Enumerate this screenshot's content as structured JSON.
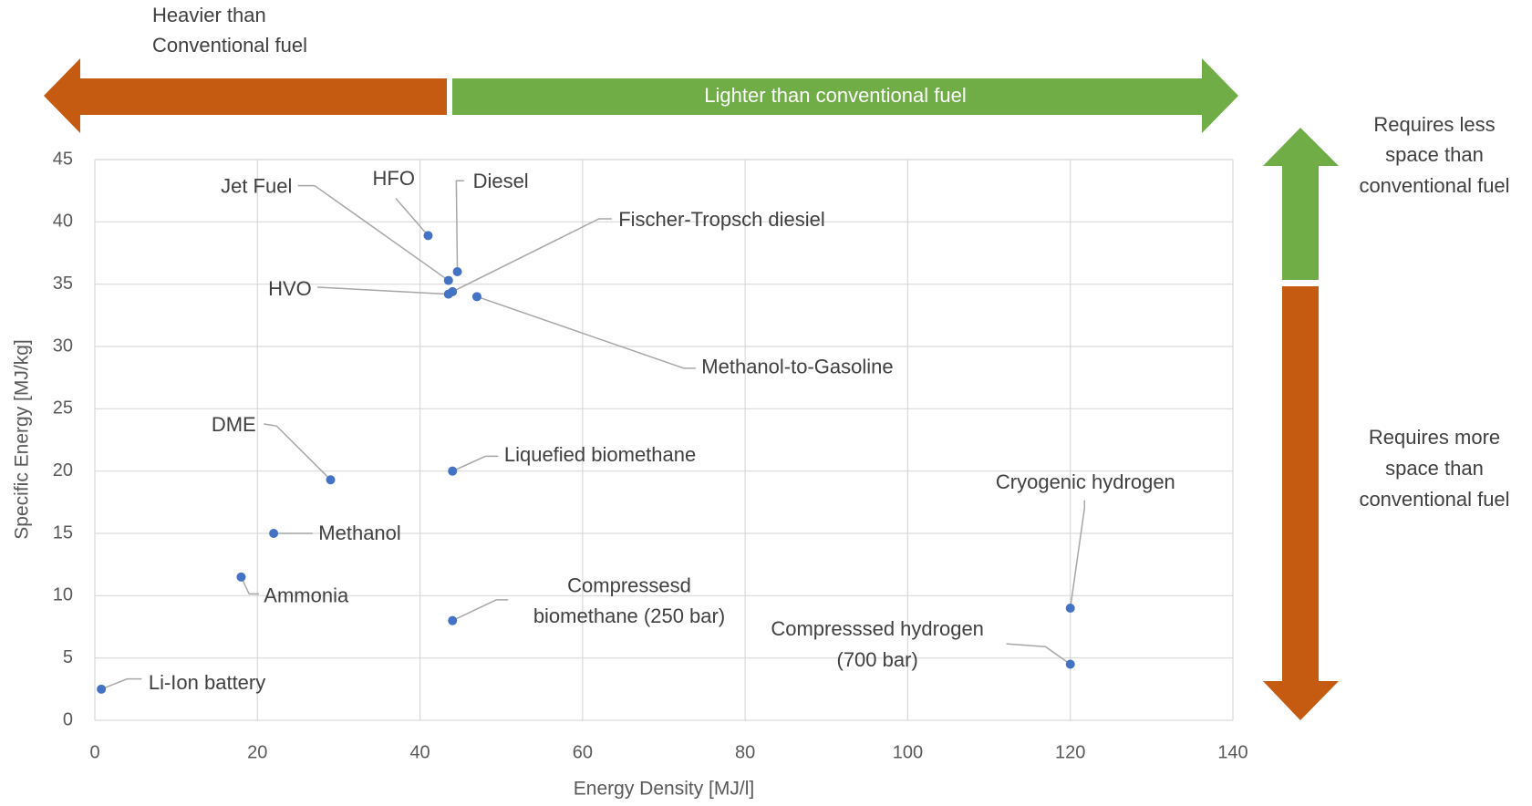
{
  "chart_data": {
    "type": "scatter",
    "x_label": "Energy Density [MJ/l]",
    "y_label": "Specific Energy [MJ/kg]",
    "xlim": [
      0,
      140
    ],
    "xticks": [
      0,
      20,
      40,
      60,
      80,
      100,
      120,
      140
    ],
    "ylim": [
      0,
      45
    ],
    "yticks": [
      0,
      5,
      10,
      15,
      20,
      25,
      30,
      35,
      40,
      45
    ],
    "grid": true,
    "color": "#4472c4",
    "labels": [
      "Li-Ion battery",
      "Ammonia",
      "Methanol",
      "DME",
      "HFO",
      "Jet Fuel",
      "Diesel",
      "Fischer-Tropsch diesiel",
      "HVO",
      "Methanol-to-Gasoline",
      "Liquefied biomethane",
      [
        "Compressesd",
        "biomethane (250 bar)"
      ],
      "Cryogenic hydrogen",
      [
        "Compresssed hydrogen",
        "(700 bar)"
      ]
    ],
    "x": [
      0.8,
      18,
      22,
      29,
      41,
      43.5,
      44.6,
      44,
      43.5,
      47,
      44,
      44,
      120,
      120
    ],
    "y": [
      2.5,
      11.5,
      15,
      19.3,
      38.9,
      35.3,
      36,
      34.4,
      34.2,
      34,
      20,
      8,
      9,
      4.5
    ],
    "annotations": {
      "heavier": [
        "Heavier than",
        "Conventional fuel"
      ],
      "lighter": "Lighter than conventional fuel",
      "less_space": [
        "Requires less",
        "space than",
        "conventional fuel"
      ],
      "more_space": [
        "Requires more",
        "space than",
        "conventional fuel"
      ]
    }
  }
}
